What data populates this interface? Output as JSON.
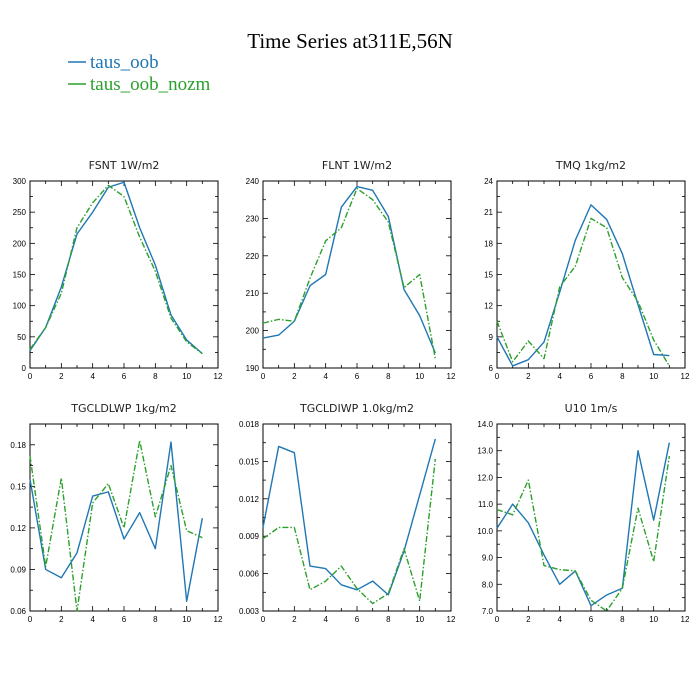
{
  "figure_title": "Time Series at311E,56N",
  "legend": [
    {
      "label": "taus_oob",
      "color": "#1f77b4",
      "dash": "solid"
    },
    {
      "label": "taus_oob_nozm",
      "color": "#2ca02c",
      "dash": "dashdot"
    }
  ],
  "chart_data": [
    {
      "type": "line",
      "title": "FSNT   1W/m2",
      "xlim": [
        0,
        12
      ],
      "ylim": [
        0,
        300
      ],
      "xticks": [
        0,
        2,
        4,
        6,
        8,
        10,
        12
      ],
      "yticks": [
        0,
        50,
        100,
        150,
        200,
        250,
        300
      ],
      "x": [
        0,
        1,
        2,
        3,
        4,
        5,
        6,
        7,
        8,
        9,
        10,
        11
      ],
      "series": [
        {
          "name": "taus_oob",
          "values": [
            28,
            65,
            130,
            215,
            250,
            290,
            298,
            225,
            165,
            85,
            45,
            23
          ]
        },
        {
          "name": "taus_oob_nozm",
          "values": [
            30,
            65,
            120,
            225,
            265,
            293,
            275,
            210,
            155,
            80,
            42,
            23
          ]
        }
      ]
    },
    {
      "type": "line",
      "title": "FLNT   1W/m2",
      "xlim": [
        0,
        12
      ],
      "ylim": [
        190,
        240
      ],
      "xticks": [
        0,
        2,
        4,
        6,
        8,
        10,
        12
      ],
      "yticks": [
        190,
        200,
        210,
        220,
        230,
        240
      ],
      "x": [
        0,
        1,
        2,
        3,
        4,
        5,
        6,
        7,
        8,
        9,
        10,
        11
      ],
      "series": [
        {
          "name": "taus_oob",
          "values": [
            198,
            198.8,
            202.5,
            212,
            215,
            233,
            238.5,
            237.5,
            230.5,
            211,
            204,
            194
          ]
        },
        {
          "name": "taus_oob_nozm",
          "values": [
            202,
            203,
            202.5,
            214,
            224,
            227.5,
            238,
            235,
            229,
            211.5,
            215,
            192.5
          ]
        }
      ]
    },
    {
      "type": "line",
      "title": "TMQ   1kg/m2",
      "xlim": [
        0,
        12
      ],
      "ylim": [
        6,
        24
      ],
      "xticks": [
        0,
        2,
        4,
        6,
        8,
        10,
        12
      ],
      "yticks": [
        6,
        9,
        12,
        15,
        18,
        21,
        24
      ],
      "x": [
        0,
        1,
        2,
        3,
        4,
        5,
        6,
        7,
        8,
        9,
        10,
        11
      ],
      "series": [
        {
          "name": "taus_oob",
          "values": [
            9.0,
            6.2,
            6.8,
            8.5,
            13.3,
            18.3,
            21.7,
            20.3,
            17.0,
            12.1,
            7.3,
            7.2
          ]
        },
        {
          "name": "taus_oob_nozm",
          "values": [
            10.5,
            6.6,
            8.6,
            6.9,
            13.8,
            15.8,
            20.4,
            19.5,
            14.7,
            12.4,
            8.7,
            6.2
          ]
        }
      ]
    },
    {
      "type": "line",
      "title": "TGCLDLWP   1kg/m2",
      "xlim": [
        0,
        12
      ],
      "ylim": [
        0.06,
        0.195
      ],
      "xticks": [
        0,
        2,
        4,
        6,
        8,
        10,
        12
      ],
      "yticks": [
        0.06,
        0.09,
        0.12,
        0.15,
        0.18
      ],
      "yticklabels": [
        "0.06",
        "0.09",
        "0.12",
        "0.15",
        "0.18"
      ],
      "x": [
        0,
        1,
        2,
        3,
        4,
        5,
        6,
        7,
        8,
        9,
        10,
        11
      ],
      "series": [
        {
          "name": "taus_oob",
          "values": [
            0.155,
            0.09,
            0.084,
            0.102,
            0.143,
            0.146,
            0.112,
            0.131,
            0.105,
            0.182,
            0.067,
            0.127
          ]
        },
        {
          "name": "taus_oob_nozm",
          "values": [
            0.172,
            0.092,
            0.156,
            0.06,
            0.138,
            0.152,
            0.12,
            0.183,
            0.128,
            0.165,
            0.118,
            0.113
          ]
        }
      ]
    },
    {
      "type": "line",
      "title": "TGCLDIWP   1.0kg/m2",
      "xlim": [
        0,
        12
      ],
      "ylim": [
        0.003,
        0.018
      ],
      "xticks": [
        0,
        2,
        4,
        6,
        8,
        10,
        12
      ],
      "yticks": [
        0.003,
        0.006,
        0.009,
        0.012,
        0.015,
        0.018
      ],
      "yticklabels": [
        "0.003",
        "0.006",
        "0.009",
        "0.012",
        "0.015",
        "0.018"
      ],
      "x": [
        0,
        1,
        2,
        3,
        4,
        5,
        6,
        7,
        8,
        9,
        10,
        11
      ],
      "series": [
        {
          "name": "taus_oob",
          "values": [
            0.0097,
            0.0162,
            0.0157,
            0.0066,
            0.0064,
            0.0051,
            0.0047,
            0.0054,
            0.0043,
            0.0078,
            0.0123,
            0.0168
          ]
        },
        {
          "name": "taus_oob_nozm",
          "values": [
            0.0088,
            0.0097,
            0.0097,
            0.0047,
            0.0054,
            0.0066,
            0.0048,
            0.0036,
            0.0044,
            0.008,
            0.0038,
            0.0152
          ]
        }
      ]
    },
    {
      "type": "line",
      "title": "U10   1m/s",
      "xlim": [
        0,
        12
      ],
      "ylim": [
        7.0,
        14.0
      ],
      "xticks": [
        0,
        2,
        4,
        6,
        8,
        10,
        12
      ],
      "yticks": [
        7,
        8,
        9,
        10,
        11,
        12,
        13,
        14
      ],
      "yticklabels": [
        "7.0",
        "8.0",
        "9.0",
        "10.0",
        "11.0",
        "12.0",
        "13.0",
        "14.0"
      ],
      "x": [
        0,
        1,
        2,
        3,
        4,
        5,
        6,
        7,
        8,
        9,
        10,
        11
      ],
      "series": [
        {
          "name": "taus_oob",
          "values": [
            10.1,
            11.0,
            10.3,
            9.1,
            8.0,
            8.5,
            7.2,
            7.6,
            7.85,
            13.0,
            10.4,
            13.3
          ]
        },
        {
          "name": "taus_oob_nozm",
          "values": [
            10.8,
            10.6,
            11.9,
            8.7,
            8.55,
            8.5,
            7.4,
            7.0,
            7.85,
            10.85,
            8.85,
            12.8
          ]
        }
      ]
    }
  ]
}
